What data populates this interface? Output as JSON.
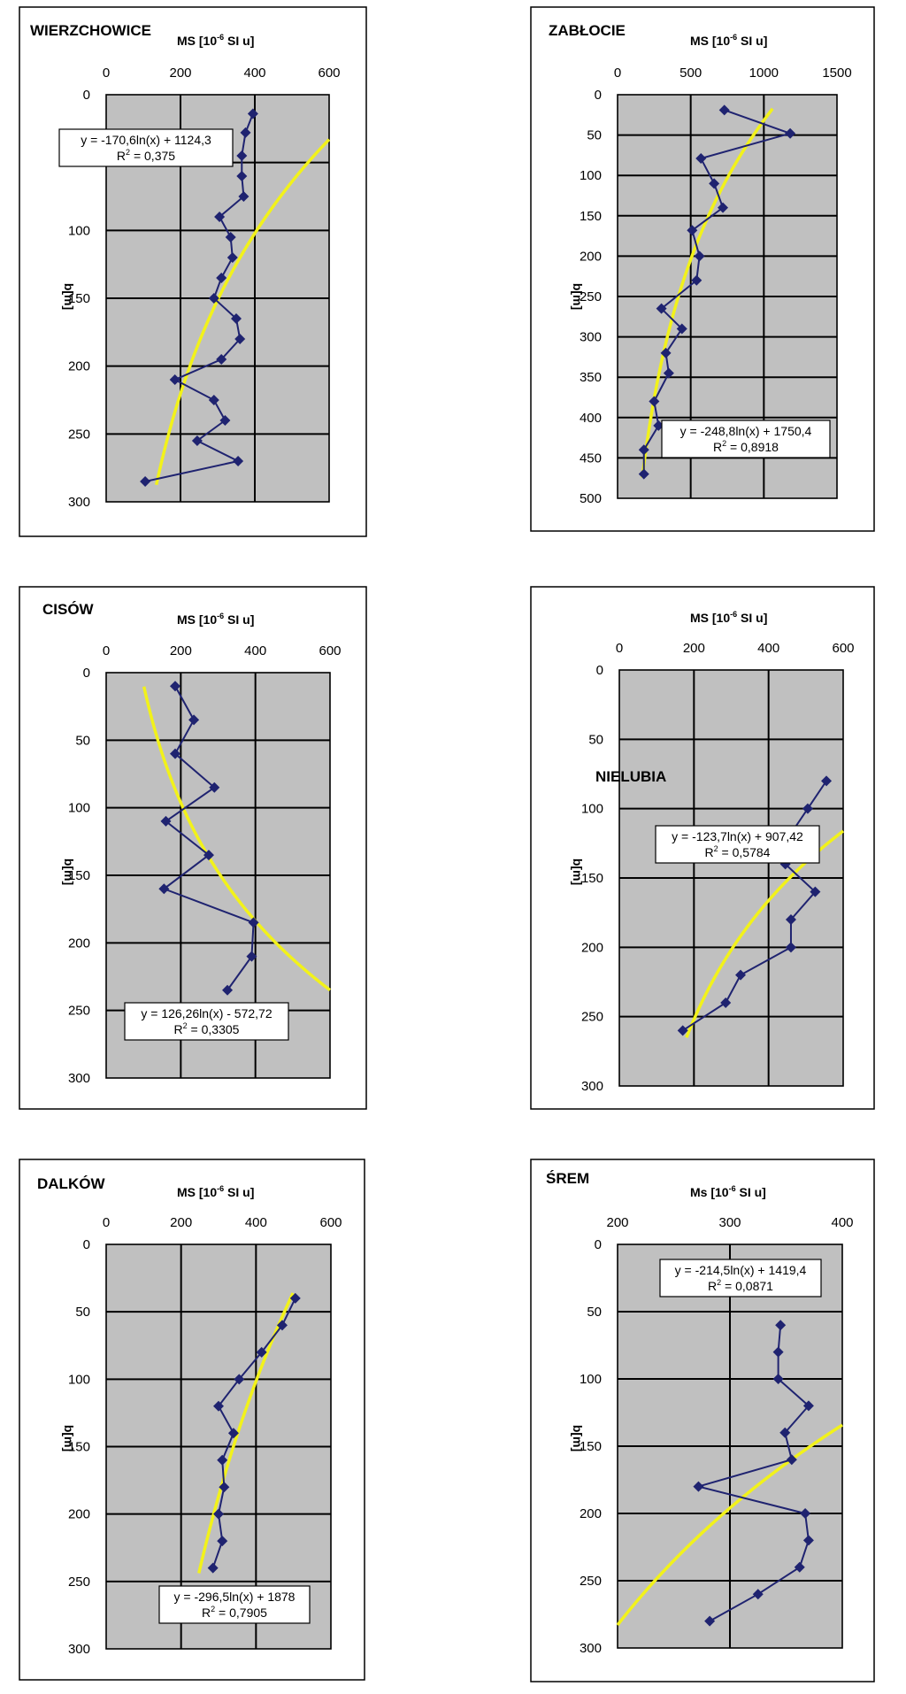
{
  "chart_data": [
    {
      "type": "line",
      "site": "WIERZCHOWICE",
      "xlabel": "MS [10-6 SI u]",
      "ylabel": "depth [cm]",
      "xlim": [
        0,
        600
      ],
      "ylim": [
        0,
        300
      ],
      "xticks": [
        "0",
        "200",
        "400",
        "600"
      ],
      "yticks": [
        "0",
        "50",
        "100",
        "150",
        "200",
        "250",
        "300"
      ],
      "points": [
        [
          395,
          14
        ],
        [
          375,
          28
        ],
        [
          365,
          45
        ],
        [
          365,
          60
        ],
        [
          370,
          75
        ],
        [
          305,
          90
        ],
        [
          335,
          105
        ],
        [
          340,
          120
        ],
        [
          310,
          135
        ],
        [
          290,
          150
        ],
        [
          350,
          165
        ],
        [
          360,
          180
        ],
        [
          310,
          195
        ],
        [
          185,
          210
        ],
        [
          290,
          225
        ],
        [
          320,
          240
        ],
        [
          245,
          255
        ],
        [
          355,
          270
        ],
        [
          105,
          285
        ]
      ],
      "equation": "y = -170,6ln(x) + 1124,3",
      "r2": "0,375",
      "trend": {
        "a": -170.6,
        "b": 1124.3
      }
    },
    {
      "type": "line",
      "site": "ZABŁOCIE",
      "xlabel": "MS [10-6 SI u]",
      "ylabel": "depth [cm]",
      "xlim": [
        0,
        1500
      ],
      "ylim": [
        0,
        500
      ],
      "xticks": [
        "0",
        "500",
        "1000",
        "1500"
      ],
      "yticks": [
        "0",
        "50",
        "100",
        "150",
        "200",
        "250",
        "300",
        "350",
        "400",
        "450",
        "500"
      ],
      "points": [
        [
          730,
          19
        ],
        [
          1180,
          48
        ],
        [
          570,
          79
        ],
        [
          660,
          110
        ],
        [
          720,
          140
        ],
        [
          510,
          168
        ],
        [
          560,
          200
        ],
        [
          540,
          230
        ],
        [
          300,
          265
        ],
        [
          440,
          290
        ],
        [
          330,
          320
        ],
        [
          350,
          345
        ],
        [
          250,
          380
        ],
        [
          280,
          410
        ],
        [
          180,
          440
        ],
        [
          180,
          470
        ]
      ],
      "equation": "y = -248,8ln(x) + 1750,4",
      "r2": "0,8918",
      "trend": {
        "a": -248.8,
        "b": 1750.4
      }
    },
    {
      "type": "line",
      "site": "CISÓW",
      "xlabel": "MS [10-6 SI u]",
      "ylabel": "depth [cm]",
      "xlim": [
        0,
        600
      ],
      "ylim": [
        0,
        300
      ],
      "xticks": [
        "0",
        "200",
        "400",
        "600"
      ],
      "yticks": [
        "0",
        "50",
        "100",
        "150",
        "200",
        "250",
        "300"
      ],
      "points": [
        [
          185,
          10
        ],
        [
          235,
          35
        ],
        [
          185,
          60
        ],
        [
          290,
          85
        ],
        [
          160,
          110
        ],
        [
          275,
          135
        ],
        [
          155,
          160
        ],
        [
          395,
          185
        ],
        [
          390,
          210
        ],
        [
          325,
          235
        ]
      ],
      "equation": "y = 126,26ln(x) - 572,72",
      "r2": "0,3305",
      "trend": {
        "a": 126.26,
        "b": -572.72
      }
    },
    {
      "type": "line",
      "site": "NIELUBIA",
      "xlabel": "MS [10-6 SI u]",
      "ylabel": "depth [cm]",
      "xlim": [
        0,
        600
      ],
      "ylim": [
        0,
        300
      ],
      "xticks": [
        "0",
        "200",
        "400",
        "600"
      ],
      "yticks": [
        "0",
        "50",
        "100",
        "150",
        "200",
        "250",
        "300"
      ],
      "points": [
        [
          555,
          80
        ],
        [
          505,
          100
        ],
        [
          455,
          120
        ],
        [
          445,
          140
        ],
        [
          525,
          160
        ],
        [
          460,
          180
        ],
        [
          460,
          200
        ],
        [
          325,
          220
        ],
        [
          285,
          240
        ],
        [
          170,
          260
        ]
      ],
      "equation": "y = -123,7ln(x) + 907,42",
      "r2": "0,5784",
      "trend": {
        "a": -123.7,
        "b": 907.42
      }
    },
    {
      "type": "line",
      "site": "DALKÓW",
      "xlabel": "MS [10-6 SI u]",
      "ylabel": "depth [cm]",
      "xlim": [
        0,
        600
      ],
      "ylim": [
        0,
        300
      ],
      "xticks": [
        "0",
        "200",
        "400",
        "600"
      ],
      "yticks": [
        "0",
        "50",
        "100",
        "150",
        "200",
        "250",
        "300"
      ],
      "points": [
        [
          505,
          40
        ],
        [
          470,
          60
        ],
        [
          415,
          80
        ],
        [
          355,
          100
        ],
        [
          300,
          120
        ],
        [
          340,
          140
        ],
        [
          310,
          160
        ],
        [
          315,
          180
        ],
        [
          300,
          200
        ],
        [
          310,
          220
        ],
        [
          285,
          240
        ]
      ],
      "equation": "y = -296,5ln(x) + 1878",
      "r2": "0,7905",
      "trend": {
        "a": -296.5,
        "b": 1878
      }
    },
    {
      "type": "line",
      "site": "ŚREM",
      "xlabel": "Ms [10-6 SI u]",
      "ylabel": "depth [cm]",
      "xlim": [
        200,
        400
      ],
      "ylim": [
        0,
        300
      ],
      "xticks": [
        "200",
        "300",
        "400"
      ],
      "yticks": [
        "0",
        "50",
        "100",
        "150",
        "200",
        "250",
        "300"
      ],
      "points": [
        [
          345,
          60
        ],
        [
          343,
          80
        ],
        [
          343,
          100
        ],
        [
          370,
          120
        ],
        [
          349,
          140
        ],
        [
          355,
          160
        ],
        [
          272,
          180
        ],
        [
          367,
          200
        ],
        [
          370,
          220
        ],
        [
          362,
          240
        ],
        [
          325,
          260
        ],
        [
          282,
          280
        ]
      ],
      "equation": "y = -214,5ln(x) + 1419,4",
      "r2": "0,0871",
      "trend": {
        "a": -214.5,
        "b": 1419.4
      }
    }
  ]
}
